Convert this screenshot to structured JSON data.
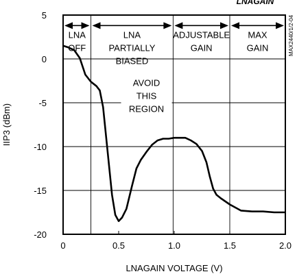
{
  "chart_data": {
    "type": "line",
    "title_fragment": "LNAGAIN",
    "xlabel": "LNAGAIN VOLTAGE (V)",
    "ylabel": "IIP3 (dBm)",
    "side_label": "MAX2440/1/2-04",
    "xlim": [
      0,
      2.0
    ],
    "ylim": [
      -20,
      5
    ],
    "x_ticks": [
      0,
      0.5,
      1.0,
      1.5,
      2.0
    ],
    "x_tick_labels": [
      "0",
      "0.5",
      "1.0",
      "1.5",
      "2.0"
    ],
    "y_ticks": [
      5,
      0,
      -5,
      -10,
      -15,
      -20
    ],
    "y_tick_labels": [
      "5",
      "0",
      "-5",
      "-10",
      "-15",
      "-20"
    ],
    "grid": true,
    "regions": [
      {
        "x0": 0,
        "x1": 0.25,
        "label_lines": [
          "LNA",
          "OFF"
        ]
      },
      {
        "x0": 0.25,
        "x1": 0.99,
        "label_lines": [
          "LNA",
          "PARTIALLY",
          "BIASED"
        ]
      },
      {
        "x0": 0.99,
        "x1": 1.5,
        "label_lines": [
          "ADJUSTABLE",
          "GAIN"
        ]
      },
      {
        "x0": 1.5,
        "x1": 2.0,
        "label_lines": [
          "MAX",
          "GAIN"
        ]
      }
    ],
    "annotation": {
      "x": 0.75,
      "lines": [
        "AVOID",
        "THIS",
        "REGION"
      ]
    },
    "series": [
      {
        "x": [
          0,
          0.05,
          0.1,
          0.15,
          0.2,
          0.25,
          0.3,
          0.33,
          0.36,
          0.4,
          0.44,
          0.47,
          0.5,
          0.53,
          0.57,
          0.62,
          0.66,
          0.7,
          0.75,
          0.8,
          0.85,
          0.9,
          0.95,
          1.0,
          1.05,
          1.1,
          1.15,
          1.2,
          1.25,
          1.29,
          1.32,
          1.35,
          1.38,
          1.42,
          1.5,
          1.6,
          1.7,
          1.8,
          1.9,
          2.0
        ],
        "y": [
          1.5,
          1.3,
          1.0,
          0.1,
          -1.8,
          -2.6,
          -3.1,
          -3.6,
          -5.5,
          -10.5,
          -15.5,
          -17.8,
          -18.5,
          -18.1,
          -17.1,
          -14.5,
          -12.5,
          -11.5,
          -10.6,
          -9.8,
          -9.3,
          -9.1,
          -9.1,
          -9.0,
          -9.0,
          -9.0,
          -9.3,
          -9.7,
          -10.5,
          -11.8,
          -13.4,
          -14.8,
          -15.5,
          -15.9,
          -16.6,
          -17.3,
          -17.4,
          -17.4,
          -17.5,
          -17.5
        ]
      }
    ]
  }
}
